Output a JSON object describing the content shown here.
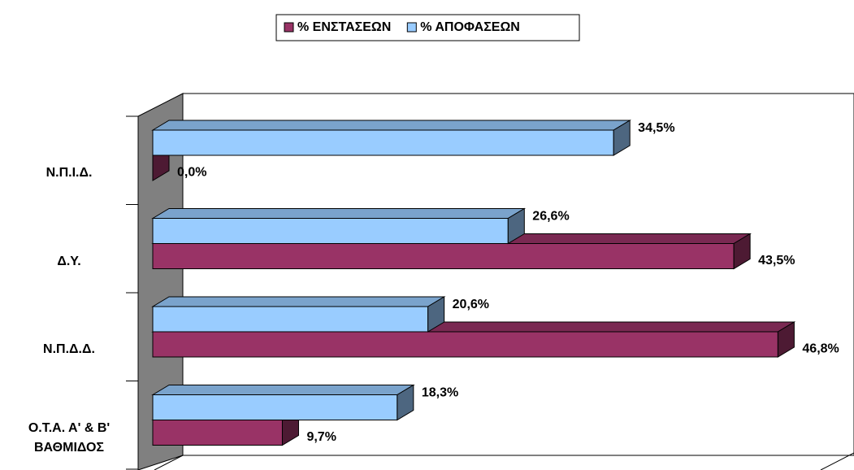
{
  "chart_data": {
    "type": "bar3d_horizontal",
    "categories": [
      "Ν.Π.Ι.Δ.",
      "Δ.Υ.",
      "Ν.Π.Δ.Δ.",
      "Ο.Τ.Α. Α' & Β' ΒΑΘΜΙΔΟΣ"
    ],
    "series": [
      {
        "name": "% ΕΝΣΤΑΣΕΩΝ",
        "color": "#993366",
        "values": [
          0.0,
          43.5,
          46.8,
          9.7
        ],
        "value_labels": [
          "0,0%",
          "43,5%",
          "46,8%",
          "9,7%"
        ]
      },
      {
        "name": "% ΑΠΟΦΑΣΕΩΝ",
        "color": "#99CCFF",
        "values": [
          34.5,
          26.6,
          20.6,
          18.3
        ],
        "value_labels": [
          "34,5%",
          "26,6%",
          "20,6%",
          "18,3%"
        ]
      }
    ],
    "xlim": [
      0,
      50
    ],
    "legend": "top"
  }
}
